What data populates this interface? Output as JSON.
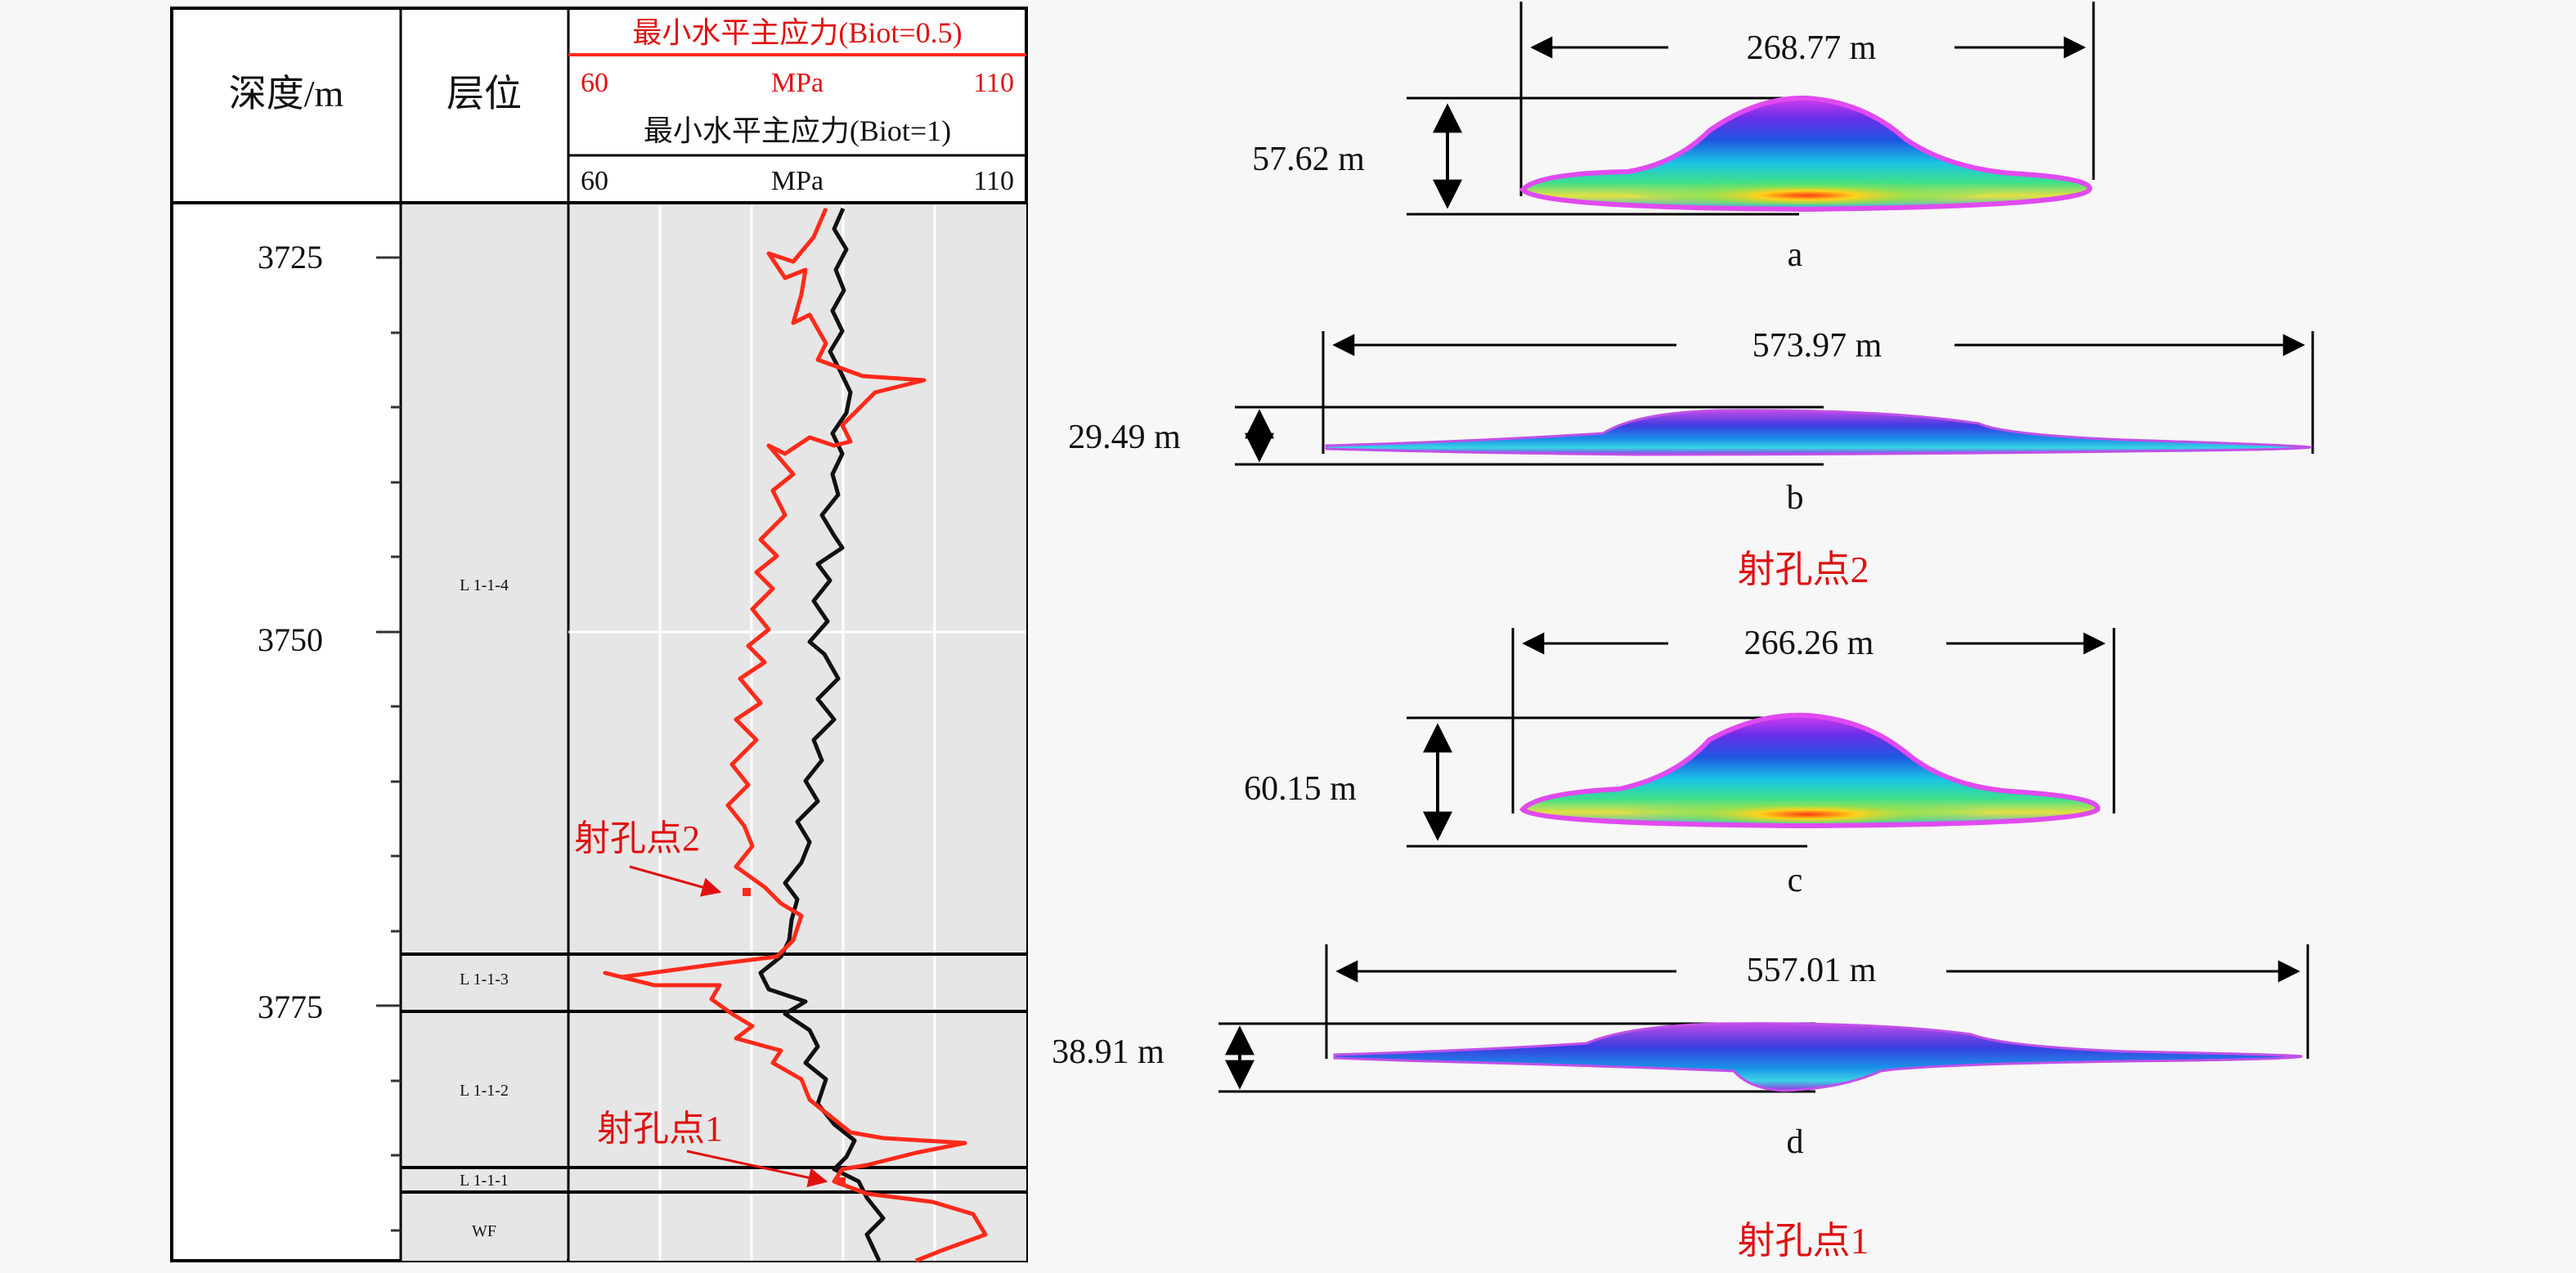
{
  "log_panel": {
    "depth_header": "深度/m",
    "layer_header": "层位",
    "stress_biot05_title": "最小水平主应力(Biot=0.5)",
    "stress_biot05_min": "60",
    "stress_biot05_unit": "MPa",
    "stress_biot05_max": "110",
    "stress_biot1_title": "最小水平主应力(Biot=1)",
    "stress_biot1_min": "60",
    "stress_biot1_unit": "MPa",
    "stress_biot1_max": "110",
    "depth_labels": [
      "3725",
      "3750",
      "3775"
    ],
    "layers": [
      "L 1-1-4",
      "L 1-1-3",
      "L 1-1-2",
      "L 1-1-1",
      "WF"
    ],
    "perforation_2": "射孔点2",
    "perforation_1": "射孔点1",
    "colors": {
      "biot05_curve": "#ff2a1a",
      "biot1_curve": "#111111",
      "annotation": "#e01010",
      "track_fill": "#e6e6e6"
    }
  },
  "fracture_panels": [
    {
      "letter": "a",
      "width_label": "268.77 m",
      "height_label": "57.62 m"
    },
    {
      "letter": "b",
      "width_label": "573.97 m",
      "height_label": "29.49 m"
    },
    {
      "letter": "c",
      "width_label": "266.26 m",
      "height_label": "60.15 m"
    },
    {
      "letter": "d",
      "width_label": "557.01 m",
      "height_label": "38.91 m"
    }
  ],
  "group_labels": {
    "point2": "射孔点2",
    "point1": "射孔点1"
  }
}
